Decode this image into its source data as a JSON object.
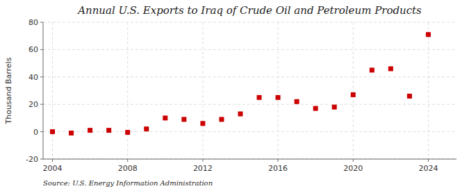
{
  "chart_data": {
    "type": "scatter",
    "title": "Annual U.S. Exports to Iraq of Crude Oil and Petroleum Products",
    "y_label": "Thousand Barrels",
    "source": "Source: U.S. Energy Information Administration",
    "x": [
      2004,
      2005,
      2006,
      2007,
      2008,
      2009,
      2010,
      2011,
      2012,
      2013,
      2014,
      2015,
      2016,
      2017,
      2018,
      2019,
      2020,
      2021,
      2022,
      2023,
      2024
    ],
    "values": [
      0,
      -1,
      1,
      1,
      -0.5,
      2,
      10,
      9,
      6,
      9,
      13,
      25,
      25,
      22,
      17,
      18,
      27,
      45,
      46,
      26,
      71
    ],
    "color": "#cc0000",
    "marker": "square",
    "xlim": [
      2003.5,
      2025.5
    ],
    "ylim": [
      -20,
      80
    ],
    "yticks": [
      -20,
      0,
      20,
      40,
      60,
      80
    ],
    "xticks": [
      2004,
      2008,
      2012,
      2016,
      2020,
      2024
    ],
    "grid": true
  }
}
